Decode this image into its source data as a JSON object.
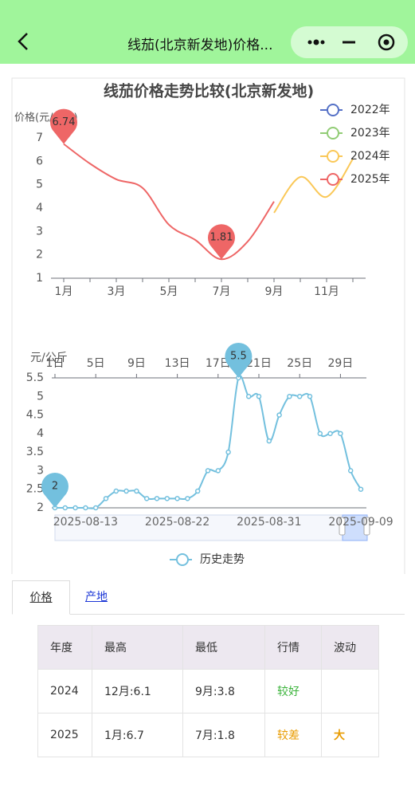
{
  "header": {
    "title": "线茄(北京新发地)价格..."
  },
  "chart_data": [
    {
      "type": "line",
      "title": "线茄价格走势比较(北京新发地)",
      "y_label": "价格(元/公斤)",
      "categories": [
        "1月",
        null,
        "3月",
        null,
        "5月",
        null,
        "7月",
        null,
        "9月",
        null,
        "11月",
        null
      ],
      "ylim": [
        1,
        7
      ],
      "yticks": [
        1,
        2,
        3,
        4,
        5,
        6,
        7
      ],
      "legend": "top-right",
      "series": [
        {
          "name": "2022年",
          "color": "#5470c6",
          "values": [
            null,
            null,
            null,
            null,
            null,
            null,
            null,
            null,
            null,
            null,
            null,
            null
          ]
        },
        {
          "name": "2023年",
          "color": "#91cc75",
          "values": [
            null,
            null,
            null,
            null,
            null,
            null,
            null,
            null,
            null,
            null,
            null,
            null
          ]
        },
        {
          "name": "2024年",
          "color": "#fac858",
          "values": [
            null,
            null,
            null,
            null,
            null,
            null,
            null,
            null,
            3.8,
            5.33,
            4.48,
            6.1
          ]
        },
        {
          "name": "2025年",
          "color": "#ee6666",
          "pins": true,
          "values": [
            6.74,
            5.9,
            5.23,
            4.86,
            3.29,
            2.64,
            1.81,
            2.57,
            4.28,
            null,
            null,
            null
          ]
        }
      ]
    },
    {
      "type": "line",
      "y_label": "元/公斤",
      "x": [
        null,
        null,
        null,
        "2025-08-13",
        null,
        null,
        null,
        null,
        null,
        null,
        null,
        null,
        "2025-08-22",
        null,
        null,
        null,
        null,
        null,
        null,
        null,
        null,
        "2025-08-31",
        null,
        null,
        null,
        null,
        null,
        null,
        null,
        null,
        "2025-09-09"
      ],
      "x2_categories": [
        "1日",
        null,
        null,
        null,
        "5日",
        null,
        null,
        null,
        "9日",
        null,
        null,
        null,
        "13日",
        null,
        null,
        null,
        "17日",
        null,
        null,
        null,
        "21日",
        null,
        null,
        null,
        "25日",
        null,
        null,
        null,
        "29日",
        null,
        null
      ],
      "ylim": [
        2,
        5.5
      ],
      "yticks": [
        2,
        2.5,
        3,
        3.5,
        4,
        4.5,
        5,
        5.5
      ],
      "legend": "bottom",
      "series": [
        {
          "name": "历史走势",
          "color": "#73c0de",
          "pins": true,
          "values": [
            2,
            2,
            2,
            2,
            2,
            2.25,
            2.45,
            2.45,
            2.45,
            2.25,
            2.25,
            2.25,
            2.25,
            2.25,
            2.45,
            3,
            3,
            3.5,
            5.5,
            5,
            5,
            3.8,
            4.5,
            5,
            5,
            5,
            4,
            4,
            4,
            3,
            2.5
          ]
        }
      ]
    }
  ],
  "tabs": [
    "价格",
    "产地"
  ],
  "table": {
    "columns": [
      "年度",
      "最高",
      "最低",
      "行情",
      "波动"
    ],
    "rows": [
      [
        "2024",
        "12月:6.1",
        "9月:3.8",
        "较好"
      ],
      [
        "2025",
        "1月:6.7",
        "7月:1.8",
        "较差",
        "大"
      ]
    ]
  }
}
